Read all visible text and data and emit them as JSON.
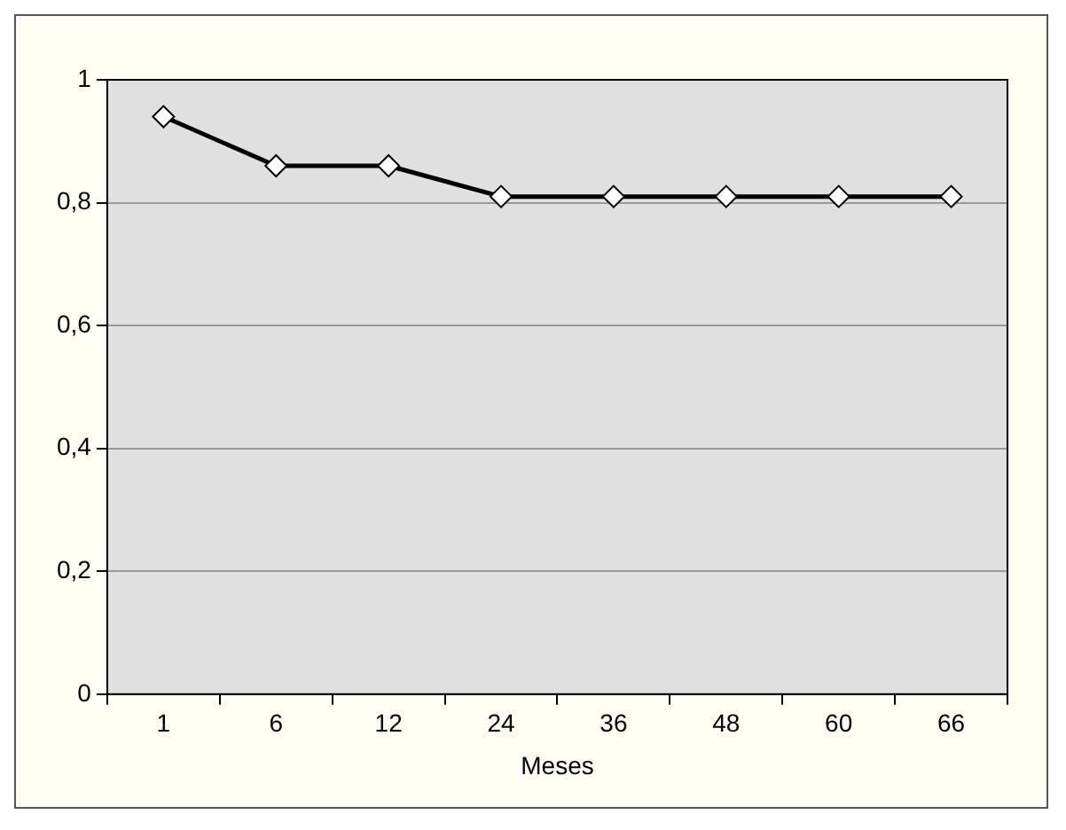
{
  "chart_data": {
    "type": "line",
    "xlabel": "Meses",
    "categories": [
      "1",
      "6",
      "12",
      "24",
      "36",
      "48",
      "60",
      "66"
    ],
    "series": [
      {
        "color": "#000000",
        "values": [
          0.94,
          0.86,
          0.86,
          0.81,
          0.81,
          0.81,
          0.81,
          0.81
        ]
      }
    ],
    "ylim": [
      0,
      1
    ],
    "yticks": [
      0,
      {
        "value": 0.2,
        "label": "0,2"
      },
      {
        "value": 0.4,
        "label": "0,4"
      },
      {
        "value": 0.6,
        "label": "0,6"
      },
      {
        "value": 0.8,
        "label": "0,8"
      },
      1
    ],
    "grid": "y",
    "legend": false,
    "marker": "diamond",
    "line_style": "solid"
  }
}
